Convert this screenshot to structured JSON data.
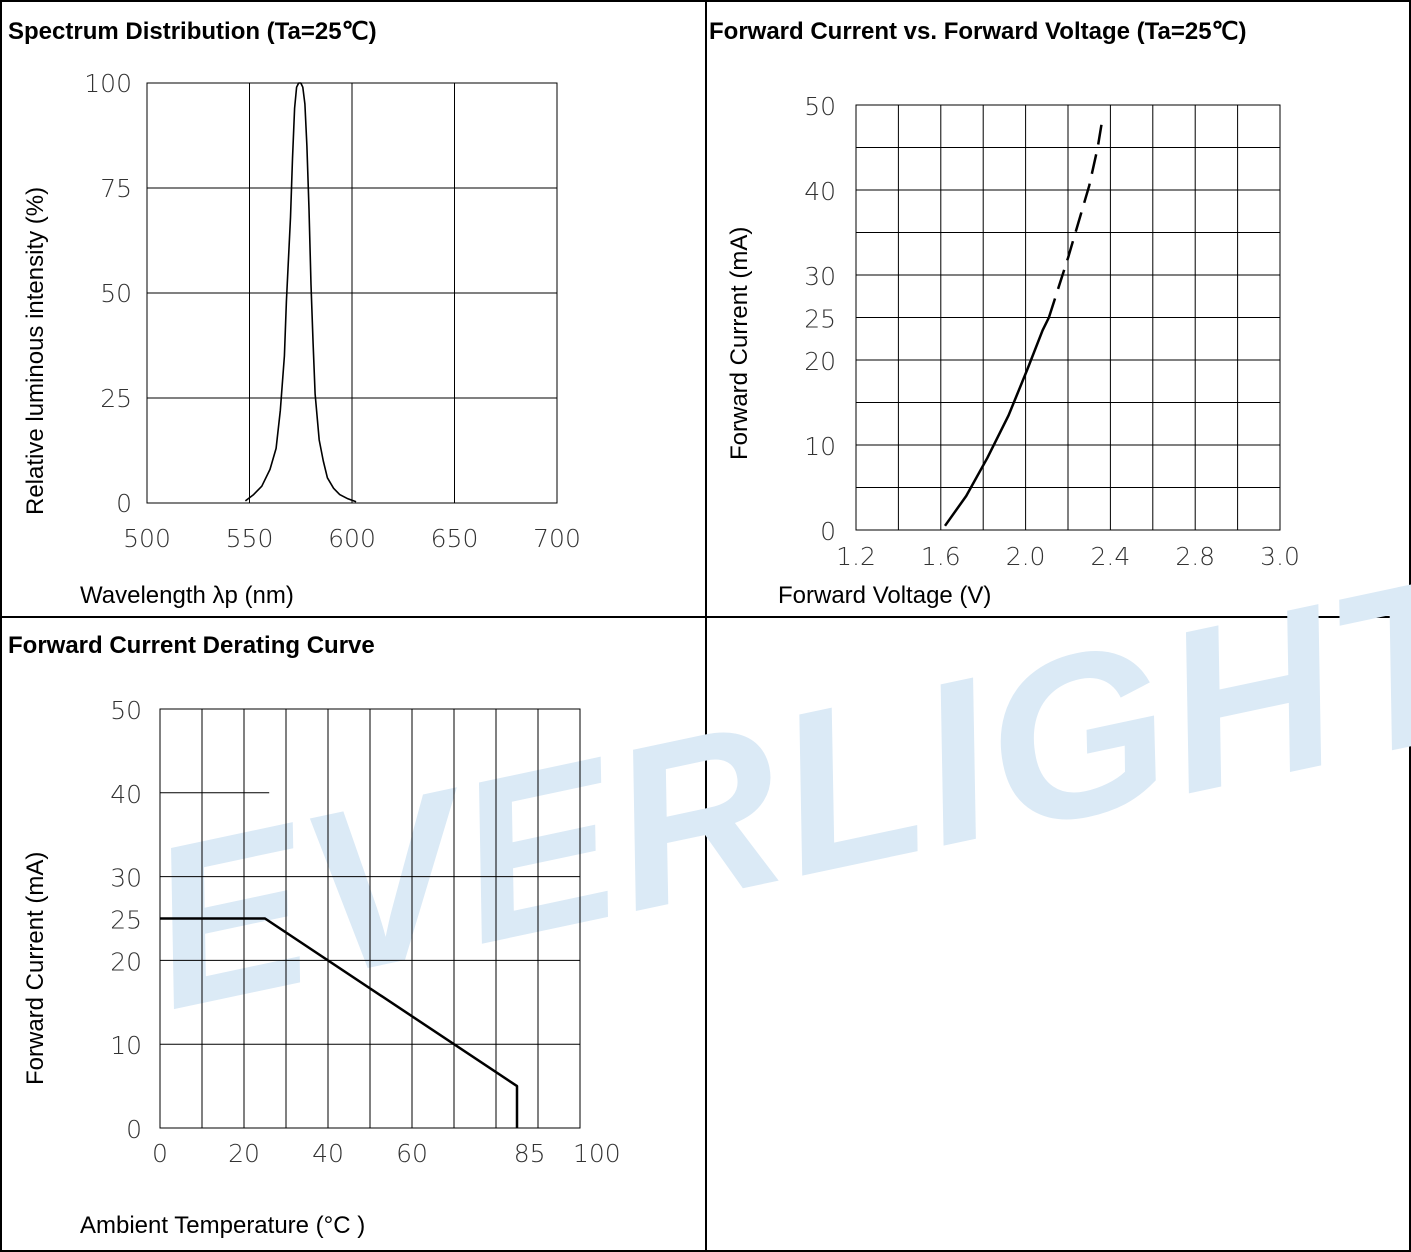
{
  "panels": {
    "spectrum": {
      "title": "Spectrum Distribution (Ta=25℃)",
      "xlabel": "Wavelength λp (nm)",
      "ylabel": "Relative luminous intensity (%)"
    },
    "ivcurve": {
      "title": "Forward Current vs. Forward Voltage (Ta=25℃)",
      "xlabel": "Forward Voltage (V)",
      "ylabel": "Forward Current (mA)"
    },
    "derating": {
      "title": "Forward Current Derating Curve",
      "xlabel": "Ambient Temperature (°C )",
      "ylabel": "Forward Current (mA)"
    }
  },
  "watermark": {
    "text": "EVERLIGHT",
    "color": "#dbeaf6"
  },
  "chart_data": [
    {
      "type": "line",
      "title": "Spectrum Distribution (Ta=25℃)",
      "xlabel": "Wavelength λp (nm)",
      "ylabel": "Relative luminous intensity (%)",
      "xlim": [
        500,
        700
      ],
      "ylim": [
        0,
        100
      ],
      "xticks": [
        "500",
        "550",
        "600",
        "650",
        "700"
      ],
      "yticks": [
        "0",
        "25",
        "50",
        "75",
        "100"
      ],
      "grid": true,
      "series": [
        {
          "x": [
            548,
            552,
            556,
            560,
            563,
            565,
            567,
            568,
            570,
            571,
            572,
            573,
            574,
            575,
            576,
            577,
            578,
            579,
            580,
            581,
            582,
            584,
            586,
            588,
            591,
            594,
            598,
            602
          ],
          "y": [
            0.5,
            2,
            4,
            8,
            13,
            22,
            35,
            48,
            68,
            82,
            94,
            99,
            100,
            100,
            99,
            95,
            85,
            70,
            52,
            38,
            26,
            15,
            10,
            6,
            3.5,
            2,
            1,
            0.3
          ]
        }
      ]
    },
    {
      "type": "line",
      "title": "Forward Current vs. Forward Voltage (Ta=25℃)",
      "xlabel": "Forward Voltage (V)",
      "ylabel": "Forward Current (mA)",
      "xlim": [
        1.2,
        3.2
      ],
      "ylim": [
        0,
        50
      ],
      "xticks": [
        "1.2",
        "1.6",
        "2.0",
        "2.4",
        "2.8",
        "3.0"
      ],
      "yticks": [
        "0",
        "10",
        "20",
        "25",
        "30",
        "40",
        "50"
      ],
      "grid": true,
      "series": [
        {
          "style": "solid",
          "x": [
            1.62,
            1.72,
            1.82,
            1.92,
            2.01,
            2.08,
            2.11
          ],
          "y": [
            0.5,
            4,
            8.5,
            13.5,
            19,
            23.5,
            25
          ]
        },
        {
          "style": "dashed",
          "x": [
            2.11,
            2.2,
            2.3,
            2.34,
            2.36
          ],
          "y": [
            25,
            32,
            40.5,
            45,
            48
          ]
        }
      ]
    },
    {
      "type": "line",
      "title": "Forward Current Derating Curve",
      "xlabel": "Ambient Temperature (°C )",
      "ylabel": "Forward Current (mA)",
      "xlim": [
        0,
        100
      ],
      "ylim": [
        0,
        50
      ],
      "xticks": [
        "0",
        "20",
        "40",
        "60",
        "85",
        "100"
      ],
      "yticks": [
        "0",
        "10",
        "20",
        "25",
        "30",
        "40",
        "50"
      ],
      "grid": true,
      "series": [
        {
          "x": [
            0,
            25,
            85,
            85
          ],
          "y": [
            25,
            25,
            5,
            0
          ]
        }
      ]
    }
  ]
}
